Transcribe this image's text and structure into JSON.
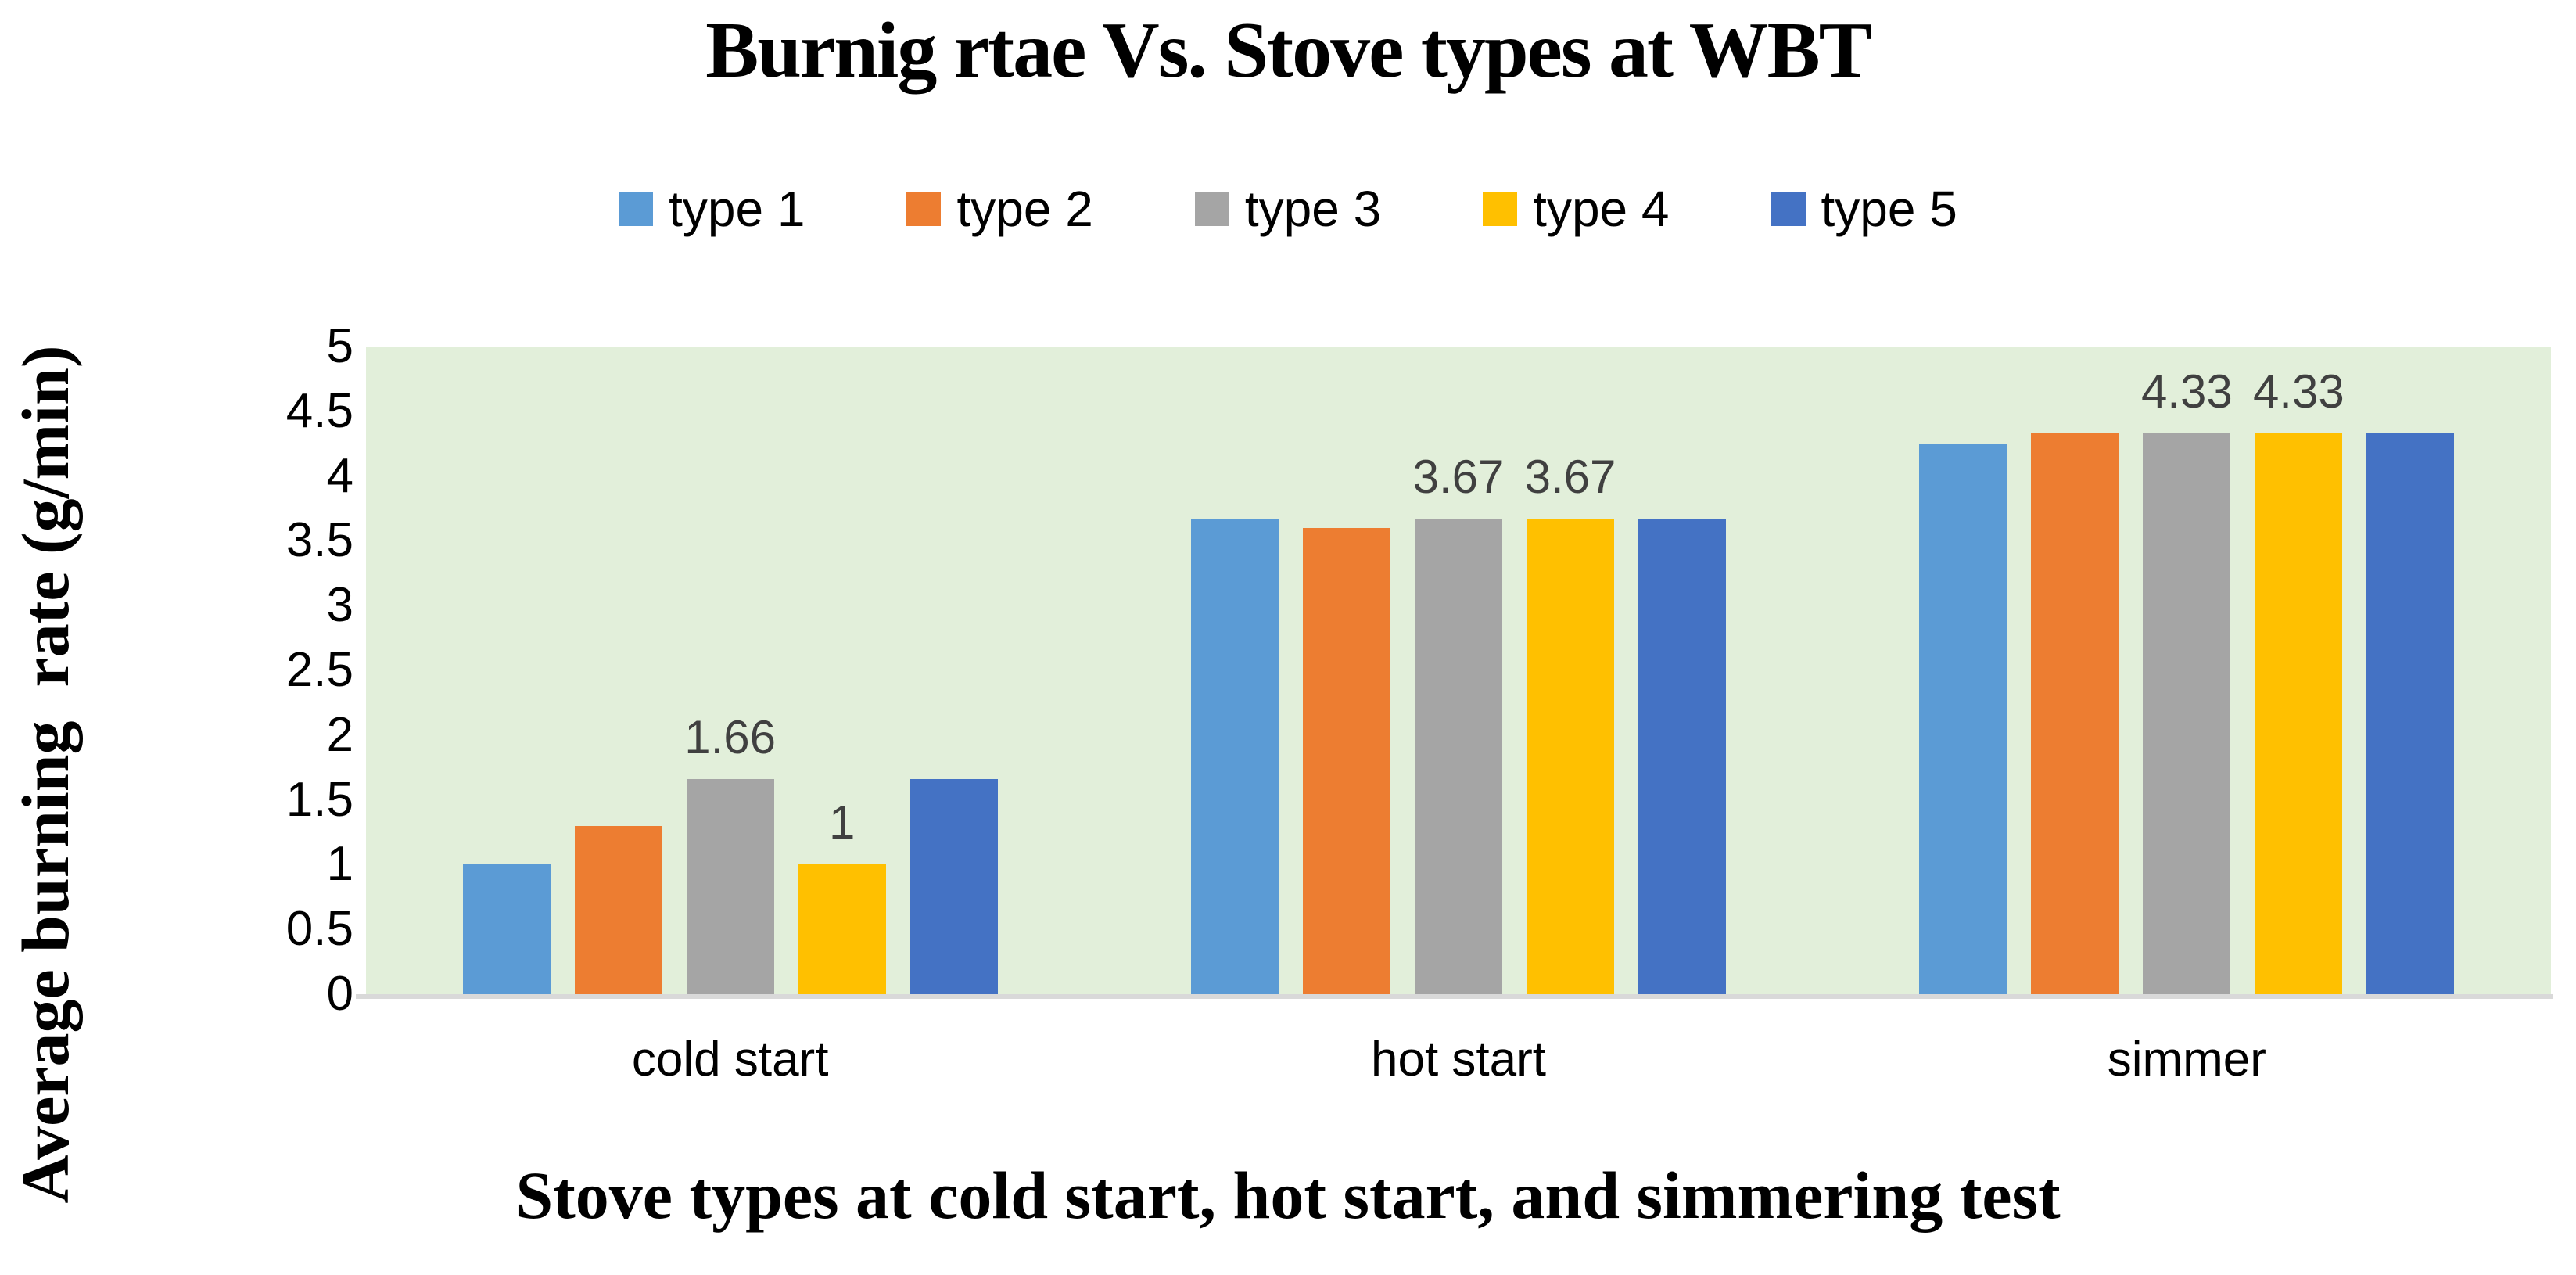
{
  "title": "Burnig rtae Vs. Stove types at WBT",
  "y_axis_title": "Average burning  rate (g/min)",
  "x_axis_title": "Stove types at cold start, hot start, and simmering test",
  "colors": {
    "plot_background": "#E2EFDA",
    "axis_line": "#D9D9D9",
    "data_label_text": "#404040"
  },
  "chart_data": {
    "type": "bar",
    "title": "Burnig rtae Vs. Stove types at WBT",
    "xlabel": "Stove types at cold start, hot start, and simmering test",
    "ylabel": "Average burning  rate (g/min)",
    "categories": [
      "cold start",
      "hot start",
      "simmer"
    ],
    "series": [
      {
        "name": "type 1",
        "color": "#5B9BD5",
        "values": [
          1.0,
          3.67,
          4.25
        ]
      },
      {
        "name": "type 2",
        "color": "#ED7D31",
        "values": [
          1.3,
          3.6,
          4.33
        ]
      },
      {
        "name": "type 3",
        "color": "#A5A5A5",
        "values": [
          1.66,
          3.67,
          4.33
        ]
      },
      {
        "name": "type 4",
        "color": "#FFC000",
        "values": [
          1.0,
          3.67,
          4.33
        ]
      },
      {
        "name": "type 5",
        "color": "#4472C4",
        "values": [
          1.66,
          3.67,
          4.33
        ]
      }
    ],
    "data_labels": [
      {
        "series_index": 2,
        "category_index": 0,
        "text": "1.66"
      },
      {
        "series_index": 3,
        "category_index": 0,
        "text": "1"
      },
      {
        "series_index": 2,
        "category_index": 1,
        "text": "3.67"
      },
      {
        "series_index": 3,
        "category_index": 1,
        "text": "3.67"
      },
      {
        "series_index": 2,
        "category_index": 2,
        "text": "4.33"
      },
      {
        "series_index": 3,
        "category_index": 2,
        "text": "4.33"
      }
    ],
    "ylim": [
      0,
      5
    ],
    "y_tick_labels": [
      "0",
      "0.5",
      "1",
      "1.5",
      "2",
      "2.5",
      "3",
      "3.5",
      "4",
      "4.5",
      "5"
    ],
    "grid": false,
    "legend_position": "top"
  }
}
